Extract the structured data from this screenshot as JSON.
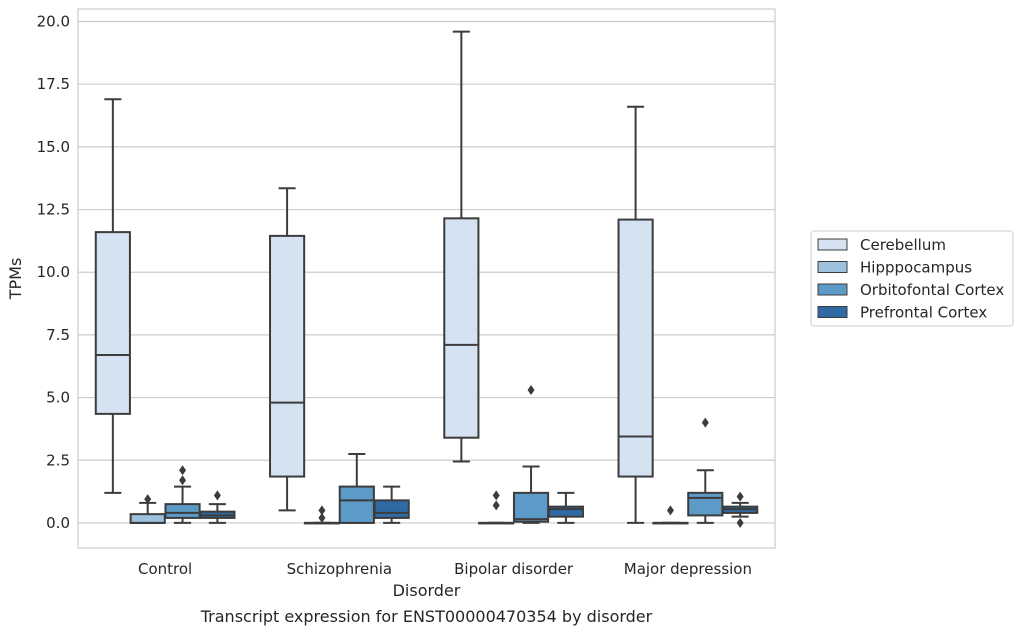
{
  "chart_data": {
    "type": "box",
    "xlabel": "Disorder",
    "ylabel": "TPMs",
    "caption": "Transcript expression for ENST00000470354 by disorder",
    "ylim": [
      -1.0,
      20.5
    ],
    "yticks": [
      "0.0",
      "2.5",
      "5.0",
      "7.5",
      "10.0",
      "12.5",
      "15.0",
      "17.5",
      "20.0"
    ],
    "grid": "horizontal",
    "legend_position": "right",
    "categories": [
      "Control",
      "Schizophrenia",
      "Bipolar disorder",
      "Major depression"
    ],
    "series": [
      {
        "name": "Cerebellum",
        "color": "#d4e2f2",
        "boxes": [
          {
            "whislo": 1.2,
            "q1": 4.35,
            "med": 6.7,
            "q3": 11.6,
            "whishi": 16.9,
            "fliers": []
          },
          {
            "whislo": 0.5,
            "q1": 1.85,
            "med": 4.8,
            "q3": 11.45,
            "whishi": 13.35,
            "fliers": []
          },
          {
            "whislo": 2.45,
            "q1": 3.4,
            "med": 7.1,
            "q3": 12.15,
            "whishi": 19.6,
            "fliers": []
          },
          {
            "whislo": 0.0,
            "q1": 1.85,
            "med": 3.45,
            "q3": 12.1,
            "whishi": 16.6,
            "fliers": []
          }
        ]
      },
      {
        "name": "Hipppocampus",
        "color": "#9ec2de",
        "boxes": [
          {
            "whislo": 0.0,
            "q1": 0.0,
            "med": 0.0,
            "q3": 0.35,
            "whishi": 0.8,
            "fliers": [
              0.95
            ]
          },
          {
            "whislo": 0.0,
            "q1": 0.0,
            "med": 0.0,
            "q3": 0.0,
            "whishi": 0.0,
            "fliers": [
              0.2,
              0.5
            ]
          },
          {
            "whislo": 0.0,
            "q1": 0.0,
            "med": 0.0,
            "q3": 0.0,
            "whishi": 0.0,
            "fliers": [
              0.7,
              1.1
            ]
          },
          {
            "whislo": 0.0,
            "q1": 0.0,
            "med": 0.0,
            "q3": 0.0,
            "whishi": 0.0,
            "fliers": [
              0.5
            ]
          }
        ]
      },
      {
        "name": "Orbitofontal Cortex",
        "color": "#5c9ac8",
        "boxes": [
          {
            "whislo": 0.0,
            "q1": 0.2,
            "med": 0.4,
            "q3": 0.75,
            "whishi": 1.45,
            "fliers": [
              1.7,
              2.1
            ]
          },
          {
            "whislo": 0.0,
            "q1": 0.0,
            "med": 0.9,
            "q3": 1.45,
            "whishi": 2.75,
            "fliers": []
          },
          {
            "whislo": 0.0,
            "q1": 0.05,
            "med": 0.15,
            "q3": 1.2,
            "whishi": 2.25,
            "fliers": [
              5.3
            ]
          },
          {
            "whislo": 0.0,
            "q1": 0.3,
            "med": 1.0,
            "q3": 1.2,
            "whishi": 2.1,
            "fliers": [
              4.0
            ]
          }
        ]
      },
      {
        "name": "Prefrontal Cortex",
        "color": "#2f6aa5",
        "boxes": [
          {
            "whislo": 0.0,
            "q1": 0.2,
            "med": 0.3,
            "q3": 0.45,
            "whishi": 0.75,
            "fliers": [
              1.1
            ]
          },
          {
            "whislo": 0.0,
            "q1": 0.2,
            "med": 0.4,
            "q3": 0.9,
            "whishi": 1.45,
            "fliers": []
          },
          {
            "whislo": 0.0,
            "q1": 0.25,
            "med": 0.55,
            "q3": 0.65,
            "whishi": 1.2,
            "fliers": []
          },
          {
            "whislo": 0.25,
            "q1": 0.4,
            "med": 0.55,
            "q3": 0.65,
            "whishi": 0.8,
            "fliers": [
              0.0,
              1.05
            ]
          }
        ]
      }
    ]
  }
}
